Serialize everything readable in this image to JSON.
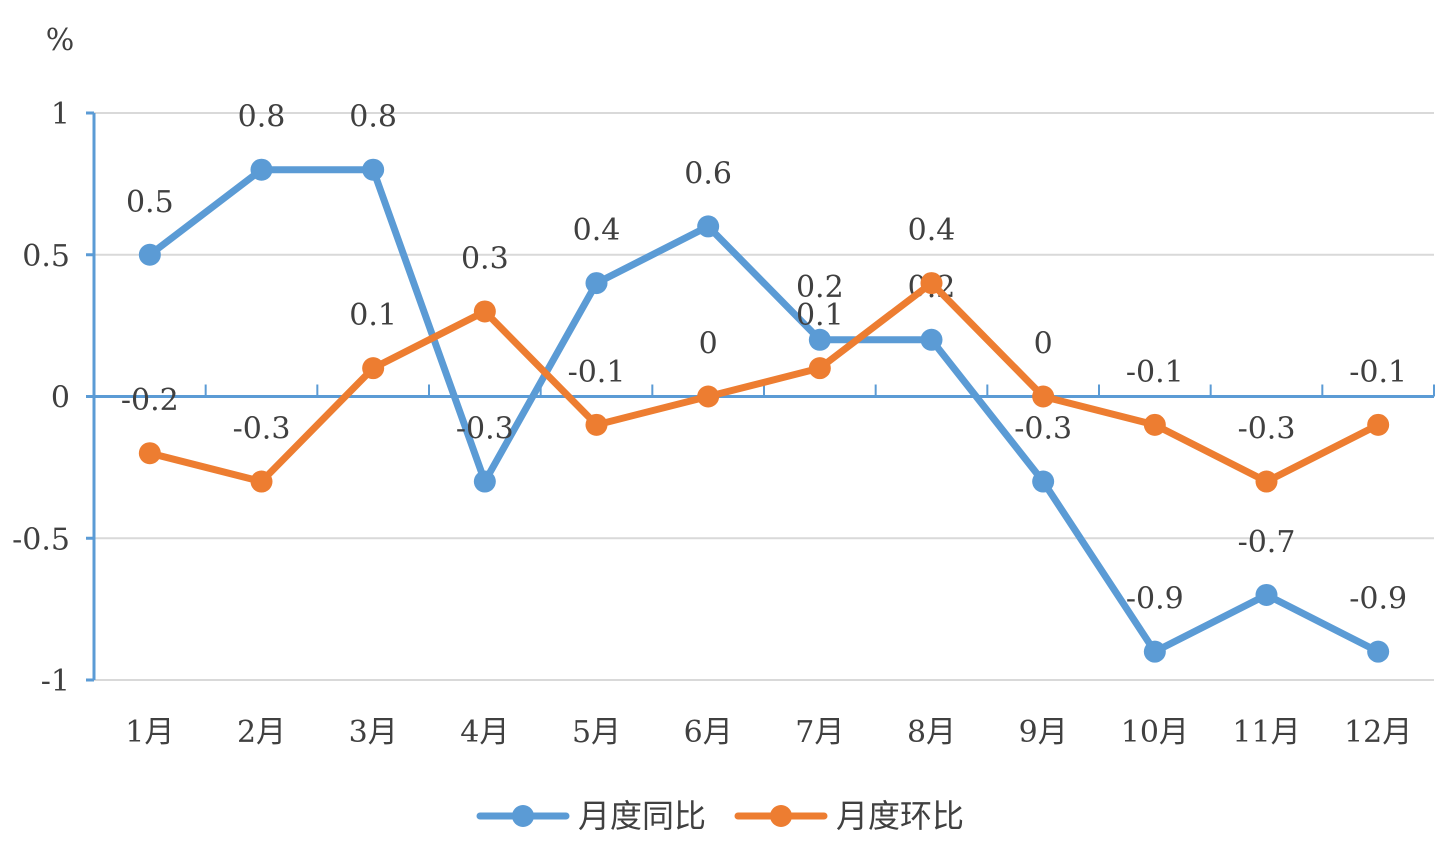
{
  "chart_data": {
    "type": "line",
    "title": "",
    "xlabel": "",
    "ylabel": "%",
    "categories": [
      "1月",
      "2月",
      "3月",
      "4月",
      "5月",
      "6月",
      "7月",
      "8月",
      "9月",
      "10月",
      "11月",
      "12月"
    ],
    "ylim": [
      -1,
      1
    ],
    "yticks": [
      -1,
      -0.5,
      0,
      0.5,
      1
    ],
    "ytick_labels": [
      "-1",
      "-0.5",
      "0",
      "0.5",
      "1"
    ],
    "grid": true,
    "legend": "bottom",
    "series": [
      {
        "name": "月度同比",
        "color": "#5B9BD5",
        "values": [
          0.5,
          0.8,
          0.8,
          -0.3,
          0.4,
          0.6,
          0.2,
          0.2,
          -0.3,
          -0.9,
          -0.7,
          -0.9
        ],
        "labels": [
          "0.5",
          "0.8",
          "0.8",
          "-0.3",
          "0.4",
          "0.6",
          "0.2",
          "0.2",
          "-0.3",
          "-0.9",
          "-0.7",
          "-0.9"
        ]
      },
      {
        "name": "月度环比",
        "color": "#ED7D31",
        "values": [
          -0.2,
          -0.3,
          0.1,
          0.3,
          -0.1,
          0,
          0.1,
          0.4,
          0,
          -0.1,
          -0.3,
          -0.1
        ],
        "labels": [
          "-0.2",
          "-0.3",
          "0.1",
          "0.3",
          "-0.1",
          "0",
          "0.1",
          "0.4",
          "0",
          "-0.1",
          "-0.3",
          "-0.1"
        ]
      }
    ],
    "axis_color": "#5B9BD5",
    "grid_color": "#D9D9D9"
  }
}
